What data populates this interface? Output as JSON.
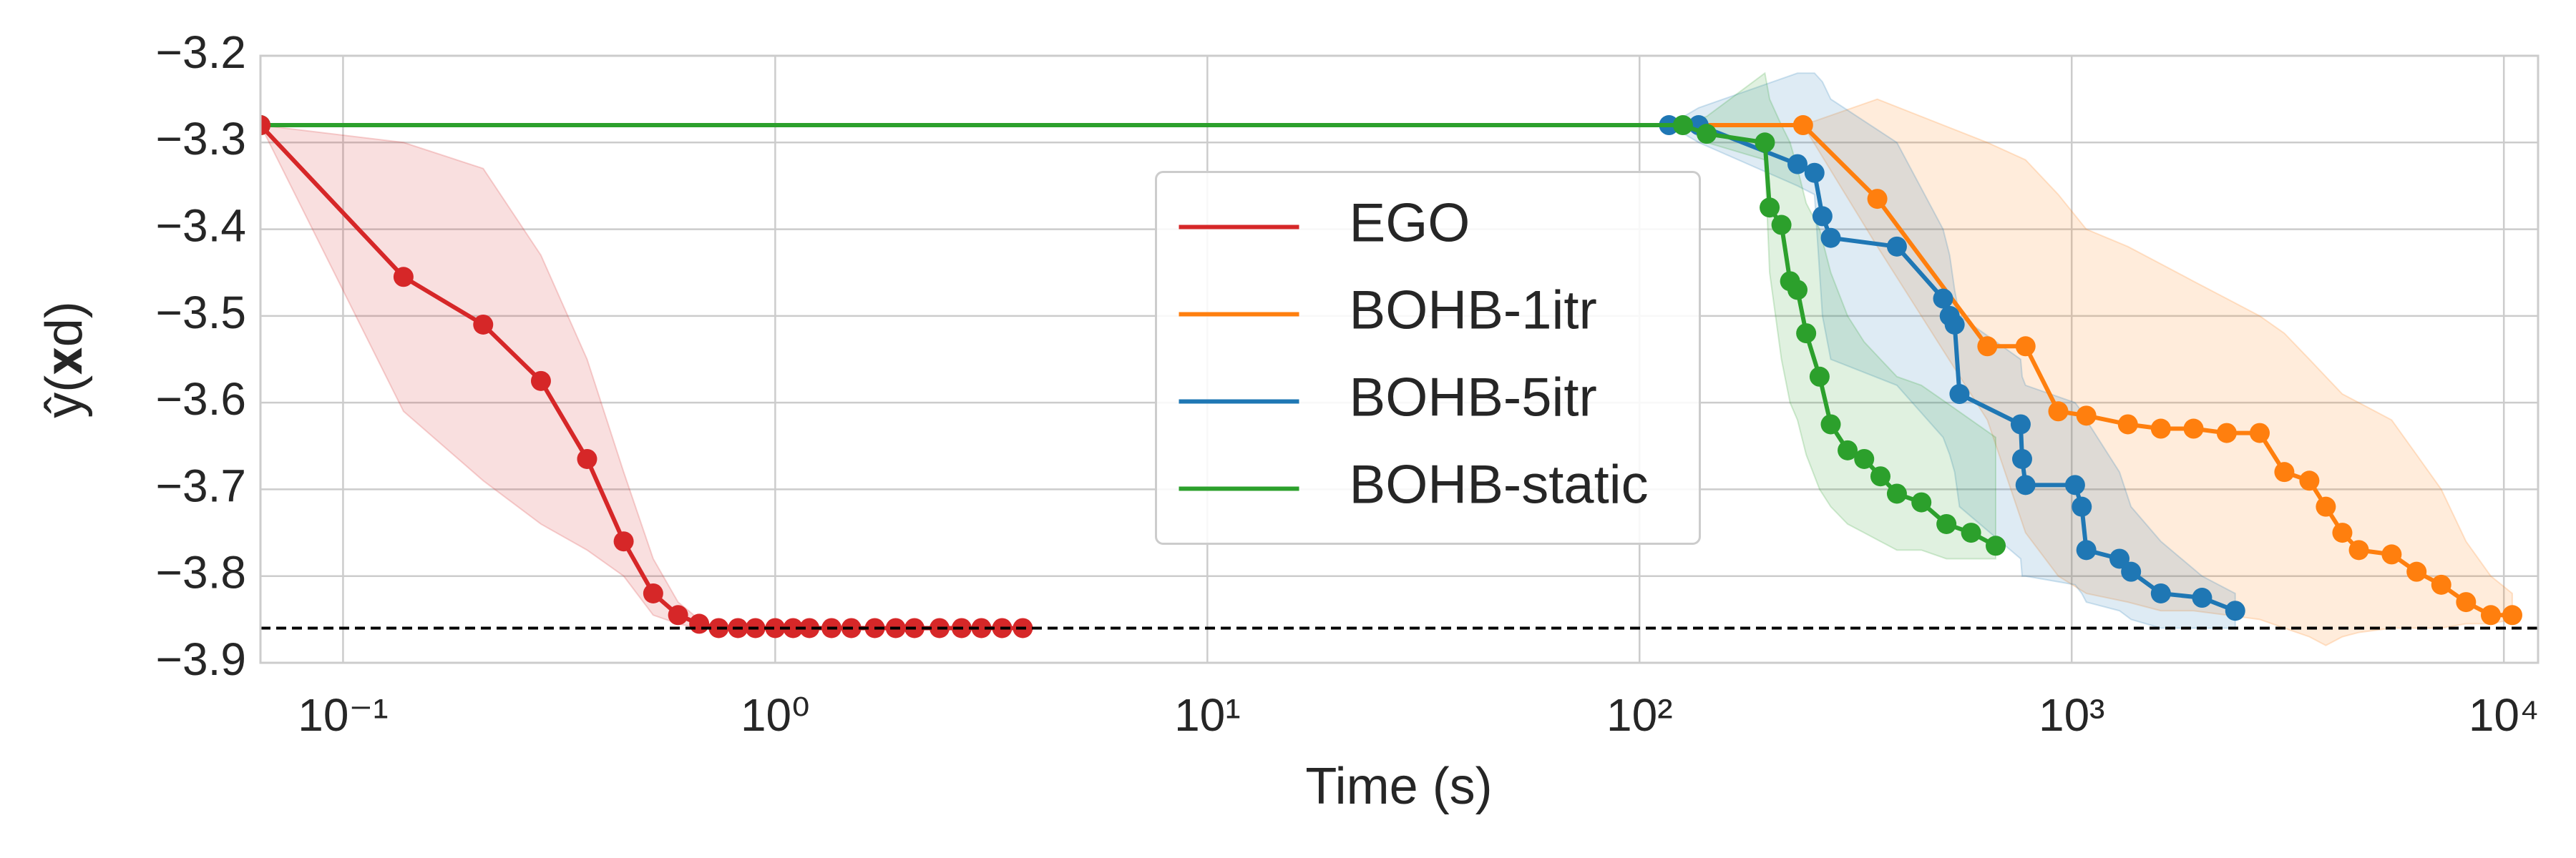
{
  "chart_data": {
    "type": "line",
    "xlabel": "Time (s)",
    "ylabel": "ŷ(𝐱d)",
    "xscale": "log",
    "xlim": [
      0.0644,
      12000
    ],
    "ylim": [
      -3.9,
      -3.2
    ],
    "xticks": [
      {
        "value": 0.1,
        "label": "10⁻¹"
      },
      {
        "value": 1,
        "label": "10⁰"
      },
      {
        "value": 10,
        "label": "10¹"
      },
      {
        "value": 100,
        "label": "10²"
      },
      {
        "value": 1000,
        "label": "10³"
      },
      {
        "value": 10000,
        "label": "10⁴"
      }
    ],
    "yticks": [
      {
        "value": -3.9,
        "label": "−3.9"
      },
      {
        "value": -3.8,
        "label": "−3.8"
      },
      {
        "value": -3.7,
        "label": "−3.7"
      },
      {
        "value": -3.6,
        "label": "−3.6"
      },
      {
        "value": -3.5,
        "label": "−3.5"
      },
      {
        "value": -3.4,
        "label": "−3.4"
      },
      {
        "value": -3.3,
        "label": "−3.3"
      },
      {
        "value": -3.2,
        "label": "−3.2"
      }
    ],
    "grid": true,
    "legend": "center",
    "hline": {
      "value": -3.86,
      "color": "#000000"
    },
    "series": [
      {
        "name": "EGO",
        "color": "#d62728",
        "x": [
          0.0644,
          0.138,
          0.211,
          0.287,
          0.367,
          0.446,
          0.522,
          0.596,
          0.667,
          0.74,
          0.82,
          0.9,
          1.0,
          1.1,
          1.2,
          1.35,
          1.5,
          1.7,
          1.9,
          2.1,
          2.4,
          2.7,
          3.0,
          3.35,
          3.74
        ],
        "values": [
          -3.28,
          -3.455,
          -3.51,
          -3.575,
          -3.665,
          -3.76,
          -3.82,
          -3.845,
          -3.855,
          -3.86,
          -3.86,
          -3.86,
          -3.86,
          -3.86,
          -3.86,
          -3.86,
          -3.86,
          -3.86,
          -3.86,
          -3.86,
          -3.86,
          -3.86,
          -3.86,
          -3.86,
          -3.86
        ],
        "upper": [
          -3.28,
          -3.3,
          -3.33,
          -3.43,
          -3.55,
          -3.68,
          -3.78,
          -3.83,
          -3.85,
          -3.86,
          -3.86,
          -3.86,
          -3.86,
          -3.86,
          -3.86,
          -3.86,
          -3.86,
          -3.86,
          -3.86,
          -3.86,
          -3.86,
          -3.86,
          -3.86,
          -3.86,
          -3.86
        ],
        "lower": [
          -3.28,
          -3.61,
          -3.69,
          -3.74,
          -3.77,
          -3.8,
          -3.845,
          -3.855,
          -3.86,
          -3.86,
          -3.86,
          -3.86,
          -3.86,
          -3.86,
          -3.86,
          -3.86,
          -3.86,
          -3.86,
          -3.86,
          -3.86,
          -3.86,
          -3.86,
          -3.86,
          -3.86,
          -3.86
        ]
      },
      {
        "name": "BOHB-1itr",
        "color": "#ff7f0e",
        "x": [
          0.0644,
          239,
          355,
          638,
          782,
          931,
          1081,
          1349,
          1608,
          1914,
          2284,
          2723,
          3105,
          3548,
          3873,
          4229,
          4618,
          5500,
          6281,
          7165,
          8175,
          9330,
          10460
        ],
        "values": [
          -3.28,
          -3.28,
          -3.365,
          -3.535,
          -3.535,
          -3.61,
          -3.615,
          -3.625,
          -3.63,
          -3.63,
          -3.635,
          -3.635,
          -3.68,
          -3.69,
          -3.72,
          -3.75,
          -3.77,
          -3.775,
          -3.795,
          -3.81,
          -3.83,
          -3.845,
          -3.845
        ],
        "upper": [
          -3.28,
          -3.28,
          -3.25,
          -3.3,
          -3.32,
          -3.36,
          -3.4,
          -3.42,
          -3.44,
          -3.46,
          -3.48,
          -3.5,
          -3.52,
          -3.55,
          -3.57,
          -3.59,
          -3.6,
          -3.62,
          -3.66,
          -3.7,
          -3.76,
          -3.8,
          -3.82
        ],
        "lower": [
          -3.28,
          -3.28,
          -3.42,
          -3.62,
          -3.75,
          -3.8,
          -3.82,
          -3.83,
          -3.84,
          -3.84,
          -3.845,
          -3.85,
          -3.86,
          -3.87,
          -3.88,
          -3.87,
          -3.865,
          -3.86,
          -3.86,
          -3.86,
          -3.855,
          -3.855,
          -3.85
        ]
      },
      {
        "name": "BOHB-5itr",
        "color": "#1f77b4",
        "x": [
          0.0644,
          117,
          137,
          232,
          254,
          265,
          277,
          394,
          504,
          522,
          536,
          550,
          762,
          768,
          782,
          1018,
          1055,
          1081,
          1290,
          1372,
          1608,
          2003,
          2390
        ],
        "values": [
          -3.28,
          -3.28,
          -3.28,
          -3.325,
          -3.335,
          -3.385,
          -3.41,
          -3.42,
          -3.48,
          -3.5,
          -3.51,
          -3.59,
          -3.625,
          -3.665,
          -3.695,
          -3.695,
          -3.72,
          -3.77,
          -3.78,
          -3.795,
          -3.82,
          -3.825,
          -3.84
        ],
        "upper": [
          -3.28,
          -3.28,
          -3.26,
          -3.22,
          -3.22,
          -3.23,
          -3.25,
          -3.3,
          -3.4,
          -3.43,
          -3.47,
          -3.5,
          -3.55,
          -3.57,
          -3.58,
          -3.6,
          -3.61,
          -3.62,
          -3.68,
          -3.72,
          -3.76,
          -3.8,
          -3.82
        ],
        "lower": [
          -3.28,
          -3.28,
          -3.3,
          -3.35,
          -3.36,
          -3.5,
          -3.55,
          -3.58,
          -3.64,
          -3.66,
          -3.68,
          -3.72,
          -3.78,
          -3.8,
          -3.8,
          -3.81,
          -3.82,
          -3.83,
          -3.84,
          -3.85,
          -3.86,
          -3.86,
          -3.86
        ]
      },
      {
        "name": "BOHB-static",
        "color": "#2ca02c",
        "x": [
          0.0644,
          126,
          143,
          195,
          200,
          213,
          223,
          232,
          243,
          261,
          277,
          303,
          331,
          361,
          394,
          449,
          513,
          585,
          667
        ],
        "values": [
          -3.28,
          -3.28,
          -3.29,
          -3.3,
          -3.375,
          -3.395,
          -3.46,
          -3.47,
          -3.52,
          -3.57,
          -3.625,
          -3.655,
          -3.665,
          -3.685,
          -3.705,
          -3.715,
          -3.74,
          -3.75,
          -3.765
        ],
        "upper": [
          -3.28,
          -3.28,
          -3.27,
          -3.22,
          -3.25,
          -3.28,
          -3.3,
          -3.33,
          -3.37,
          -3.4,
          -3.45,
          -3.5,
          -3.53,
          -3.55,
          -3.57,
          -3.58,
          -3.6,
          -3.62,
          -3.64
        ],
        "lower": [
          -3.28,
          -3.28,
          -3.3,
          -3.32,
          -3.45,
          -3.55,
          -3.6,
          -3.62,
          -3.66,
          -3.7,
          -3.72,
          -3.74,
          -3.75,
          -3.76,
          -3.77,
          -3.77,
          -3.78,
          -3.78,
          -3.78
        ]
      }
    ]
  }
}
